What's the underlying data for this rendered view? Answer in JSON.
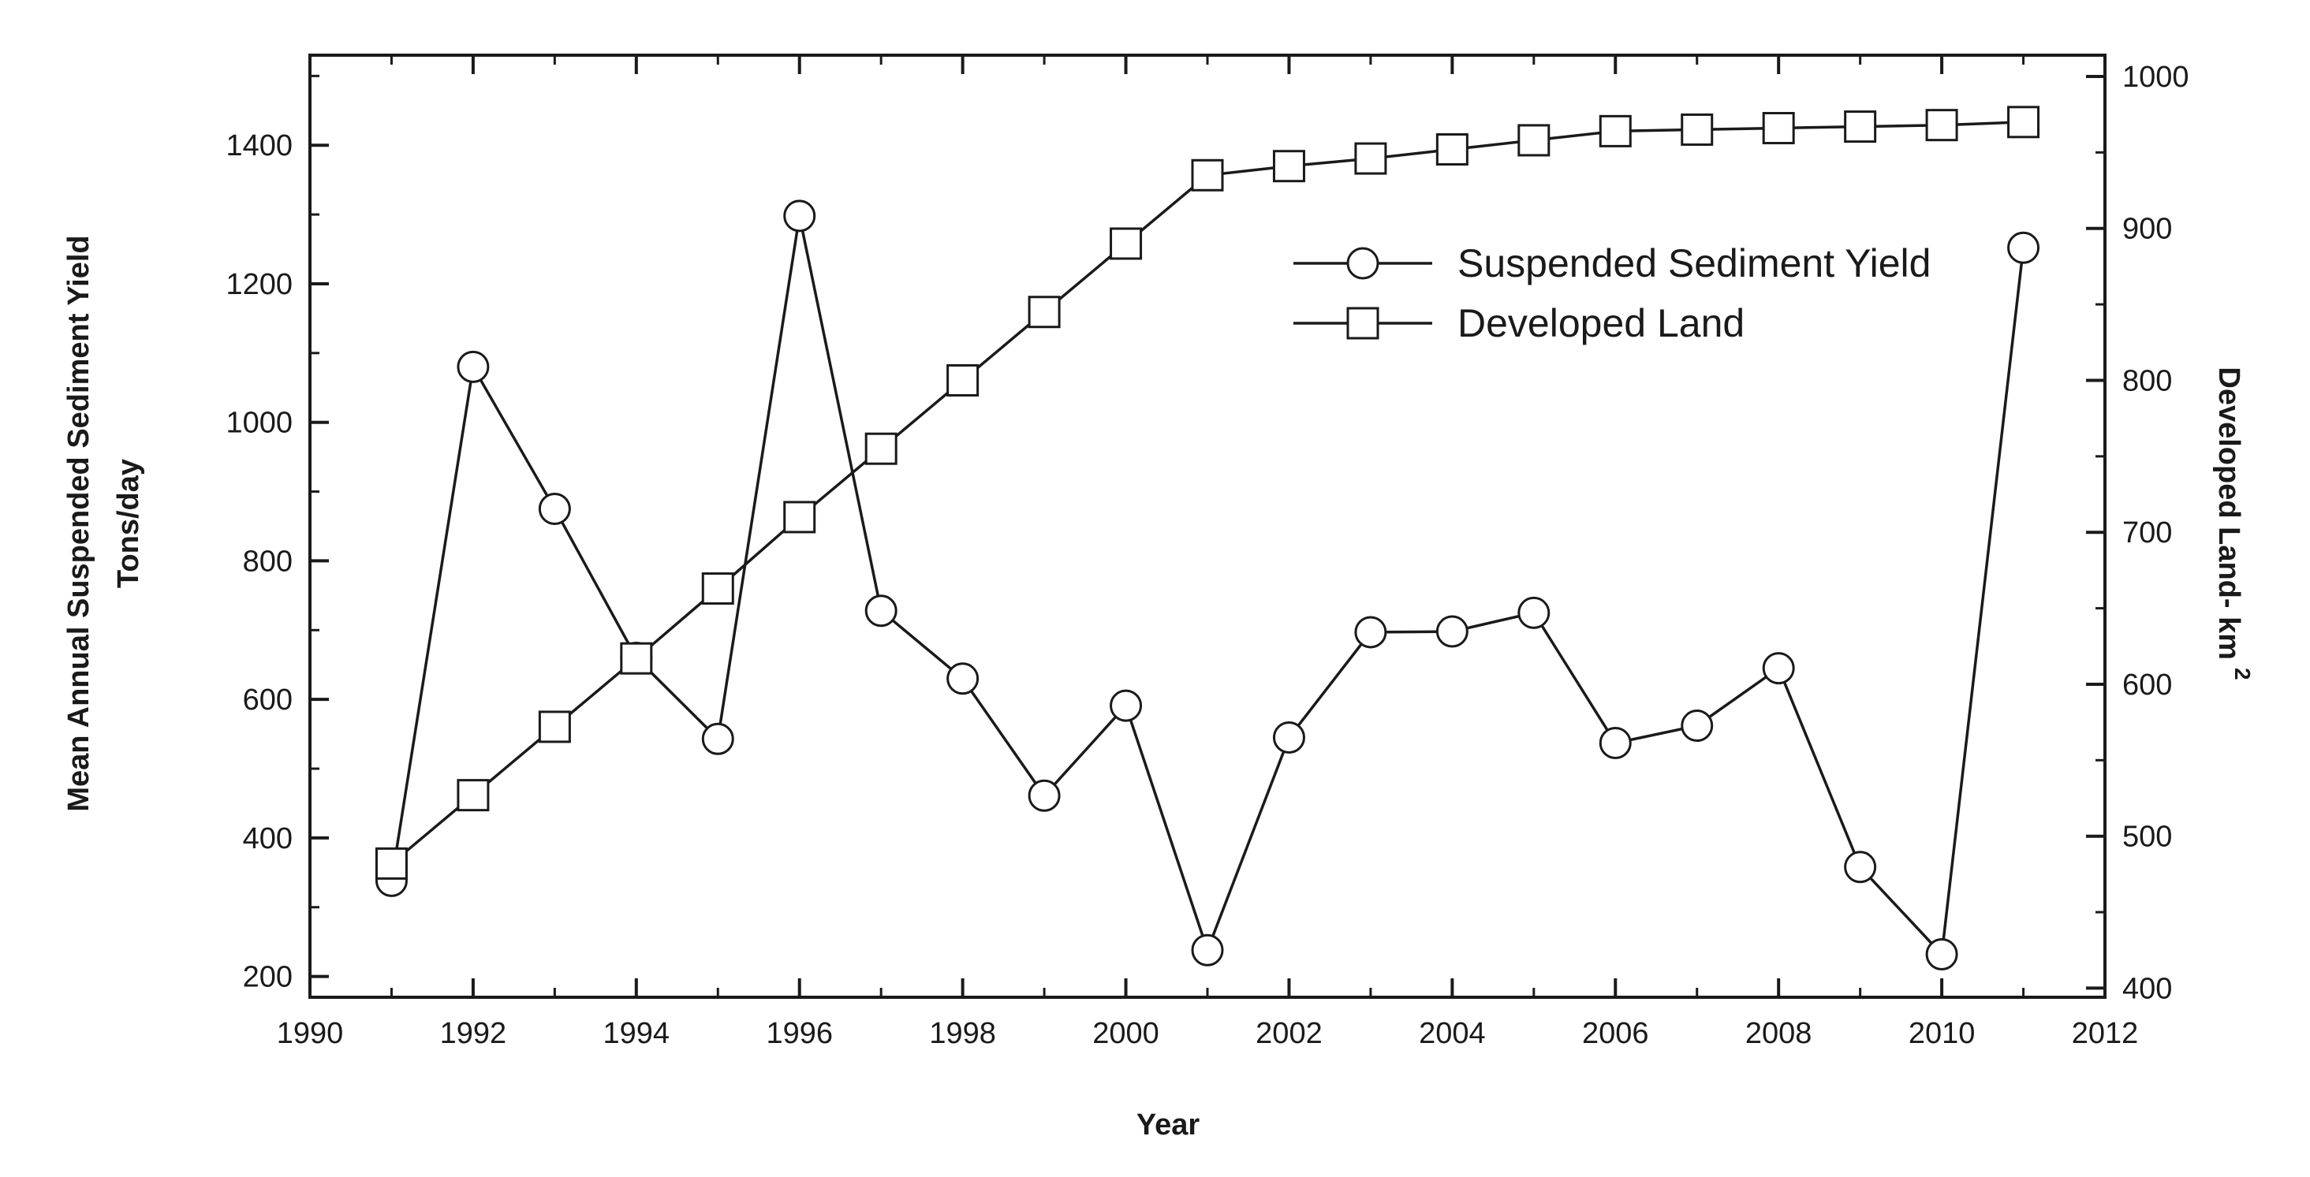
{
  "chart_data": {
    "type": "line",
    "title": "",
    "xlabel": "Year",
    "ylabel_left_line1": "Mean Annual Suspended Sediment Yield",
    "ylabel_left_line2": "Tons/day",
    "ylabel_right": "Developed Land- km",
    "ylabel_right_superscript": "2",
    "xlim": [
      1990,
      2012
    ],
    "ylim_left": [
      170,
      1530
    ],
    "ylim_right": [
      394,
      1014
    ],
    "x_ticks": [
      1990,
      1992,
      1994,
      1996,
      1998,
      2000,
      2002,
      2004,
      2006,
      2008,
      2010,
      2012
    ],
    "y_left_ticks": [
      200,
      400,
      600,
      800,
      1000,
      1200,
      1400
    ],
    "y_right_ticks": [
      400,
      500,
      600,
      700,
      800,
      900,
      1000
    ],
    "x": [
      1991,
      1992,
      1993,
      1994,
      1995,
      1996,
      1997,
      1998,
      1999,
      2000,
      2001,
      2002,
      2003,
      2004,
      2005,
      2006,
      2007,
      2008,
      2009,
      2010,
      2011
    ],
    "legend_position": "upper-right",
    "series": [
      {
        "name": "Suspended Sediment Yield",
        "axis": "left",
        "marker": "circle",
        "values": [
          338,
          1080,
          875,
          660,
          543,
          1298,
          728,
          630,
          461,
          591,
          238,
          545,
          697,
          698,
          725,
          537,
          562,
          645,
          358,
          232,
          1252
        ]
      },
      {
        "name": "Developed Land",
        "axis": "right",
        "marker": "square",
        "values": [
          482,
          527,
          572,
          617,
          663,
          710,
          755,
          800,
          845,
          890,
          935,
          941,
          946,
          952,
          958,
          964,
          965,
          966,
          967,
          968,
          970
        ]
      }
    ]
  }
}
